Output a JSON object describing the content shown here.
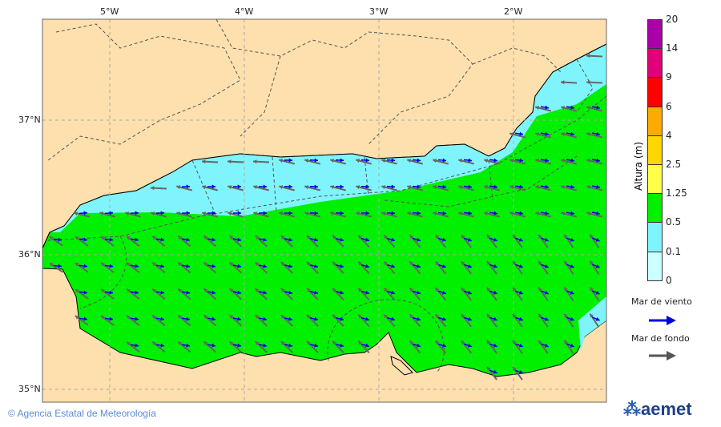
{
  "map": {
    "lon_labels": [
      "5°W",
      "4°W",
      "3°W",
      "2°W"
    ],
    "lat_labels": [
      "37°N",
      "36°N",
      "35°N"
    ],
    "colors": {
      "land": "#fde0ad",
      "calm_sea": "#80f4fc",
      "green_sea": "#00f000",
      "wind_arrow": "#0000e0",
      "swell_arrow": "#666666"
    }
  },
  "legend": {
    "title": "Altura (m)",
    "ticks": [
      "20",
      "14",
      "9",
      "6",
      "4",
      "2.5",
      "1.25",
      "0.5",
      "0.1",
      "0"
    ],
    "colors": [
      "#aa00aa",
      "#e0007a",
      "#ff0000",
      "#ffaa00",
      "#ffd700",
      "#ffff4a",
      "#00f000",
      "#80f4fc",
      "#ccffff"
    ],
    "wind_sea_label": "Mar de viento",
    "swell_label": "Mar de fondo"
  },
  "footer": {
    "copyright": "© Agencia Estatal de Meteorología",
    "logo": "aemet"
  }
}
